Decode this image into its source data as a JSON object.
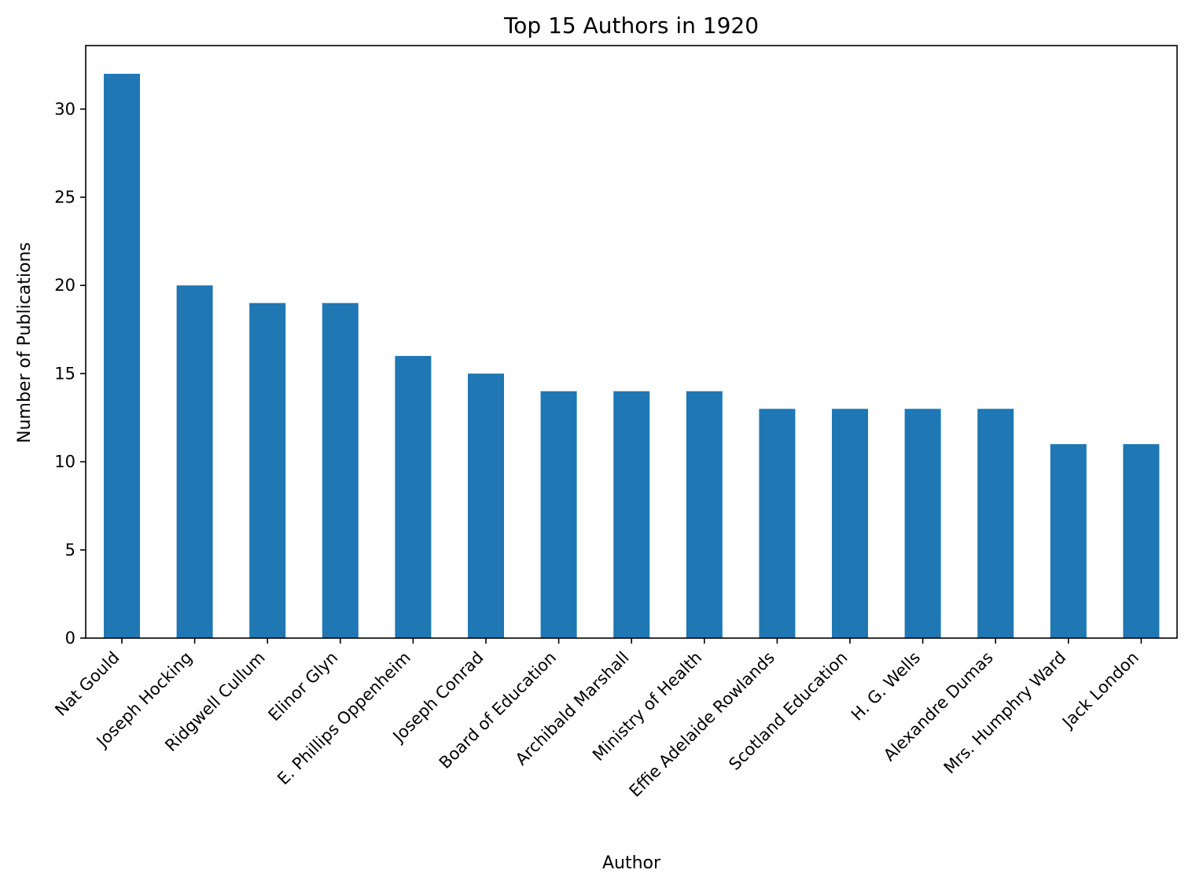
{
  "chart_data": {
    "type": "bar",
    "title": "Top 15 Authors in 1920",
    "xlabel": "Author",
    "ylabel": "Number of Publications",
    "categories": [
      "Nat Gould",
      "Joseph Hocking",
      "Ridgwell Cullum",
      "Elinor Glyn",
      "E. Phillips Oppenheim",
      "Joseph Conrad",
      "Board of Education",
      "Archibald Marshall",
      "Ministry of Health",
      "Effie Adelaide Rowlands",
      "Scotland Education",
      "H. G. Wells",
      "Alexandre Dumas",
      "Mrs. Humphry Ward",
      "Jack London"
    ],
    "values": [
      32,
      20,
      19,
      19,
      16,
      15,
      14,
      14,
      14,
      13,
      13,
      13,
      13,
      11,
      11
    ],
    "ylim": [
      0,
      33.6
    ],
    "yticks": [
      0,
      5,
      10,
      15,
      20,
      25,
      30
    ],
    "grid": false,
    "bar_color": "#1f77b4"
  }
}
